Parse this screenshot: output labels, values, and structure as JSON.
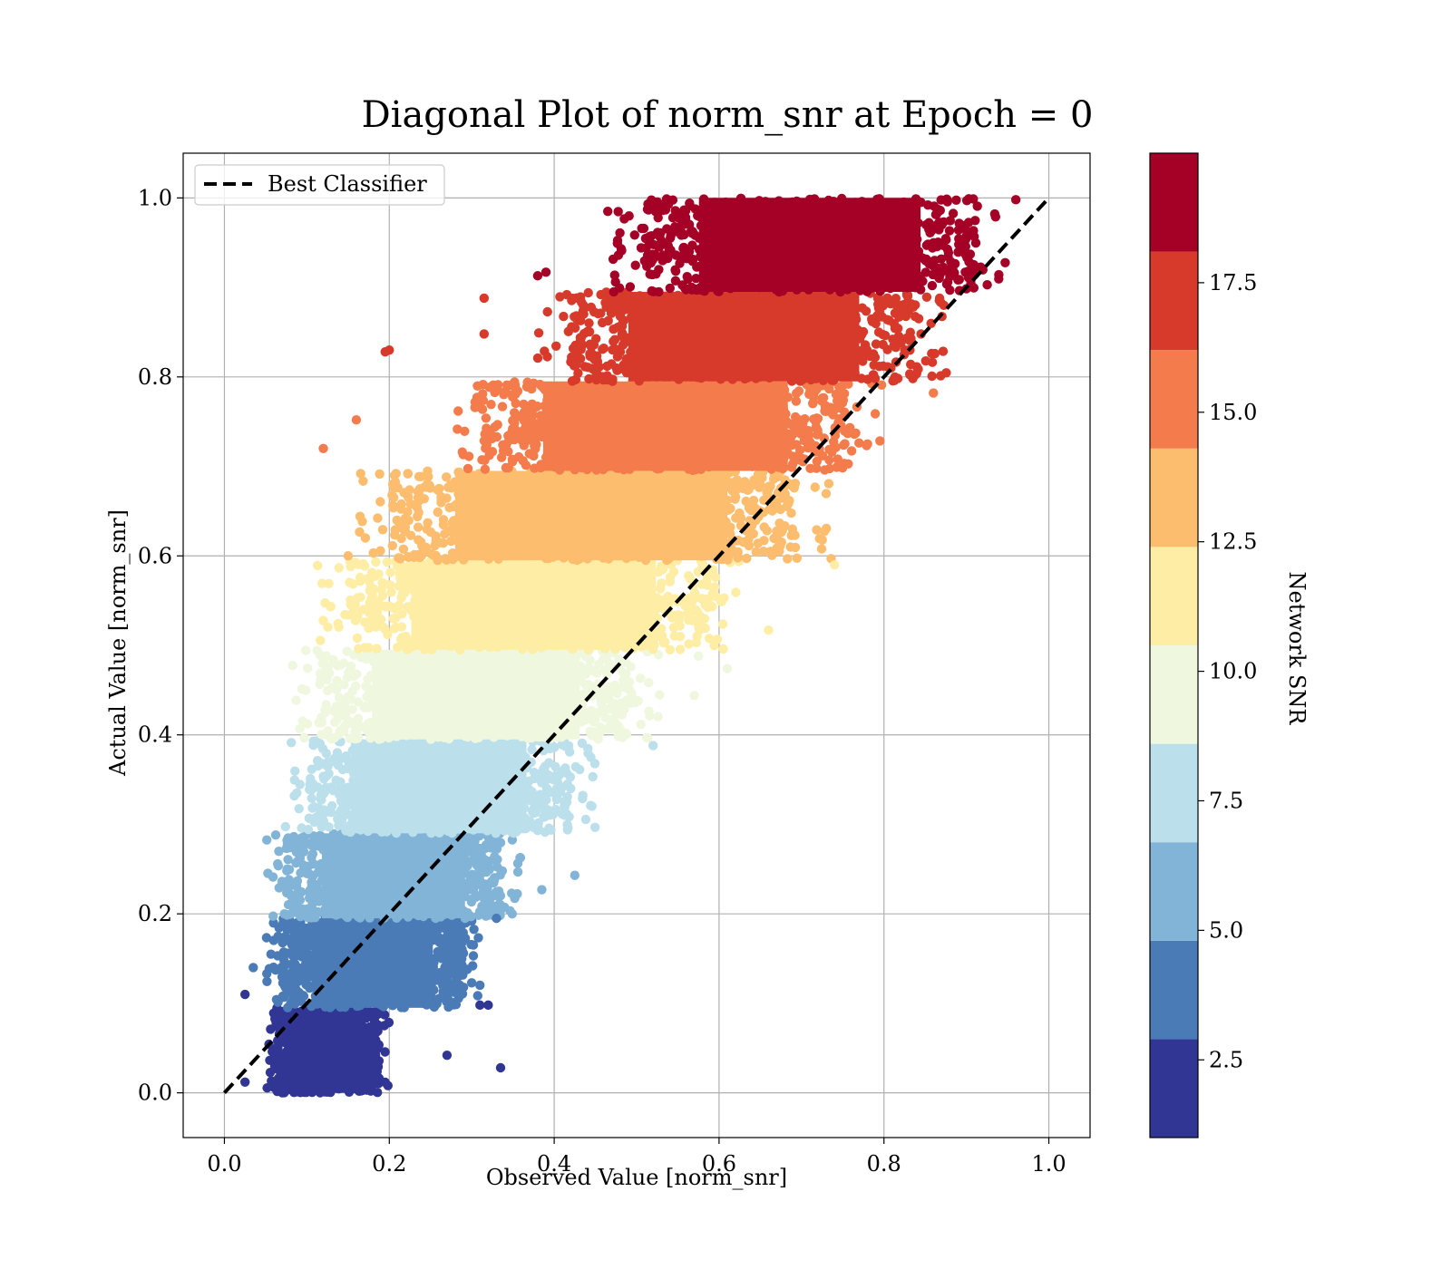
{
  "chart_data": {
    "type": "scatter",
    "title": "Diagonal Plot of norm_snr at Epoch = 0",
    "xlabel": "Observed Value [norm_snr]",
    "ylabel": "Actual Value [norm_snr]",
    "xlim": [
      -0.05,
      1.05
    ],
    "ylim": [
      -0.05,
      1.05
    ],
    "xticks": [
      "0.0",
      "0.2",
      "0.4",
      "0.6",
      "0.8",
      "1.0"
    ],
    "yticks": [
      "0.0",
      "0.2",
      "0.4",
      "0.6",
      "0.8",
      "1.0"
    ],
    "xtick_values": [
      0,
      0.2,
      0.4,
      0.6,
      0.8,
      1.0
    ],
    "ytick_values": [
      0,
      0.2,
      0.4,
      0.6,
      0.8,
      1.0
    ],
    "grid": true,
    "legend": {
      "placement": "top-left",
      "entries": [
        "Best Classifier"
      ]
    },
    "reference_line": {
      "label": "Best Classifier",
      "from": [
        0,
        0
      ],
      "to": [
        1,
        1
      ],
      "style": "dashed",
      "color": "#000000"
    },
    "colorbar": {
      "label": "Network SNR",
      "range": [
        1.0,
        20.0
      ],
      "ticks": [
        "2.5",
        "5.0",
        "7.5",
        "10.0",
        "12.5",
        "15.0",
        "17.5"
      ],
      "tick_values": [
        2.5,
        5.0,
        7.5,
        10.0,
        12.5,
        15.0,
        17.5
      ],
      "bands": [
        {
          "from": 1.0,
          "to": 2.9,
          "color": "#313695"
        },
        {
          "from": 2.9,
          "to": 4.8,
          "color": "#4a7bb7"
        },
        {
          "from": 4.8,
          "to": 6.7,
          "color": "#81b4d7"
        },
        {
          "from": 6.7,
          "to": 8.6,
          "color": "#bce0eb"
        },
        {
          "from": 8.6,
          "to": 10.5,
          "color": "#eff8df"
        },
        {
          "from": 10.5,
          "to": 12.4,
          "color": "#feeda4"
        },
        {
          "from": 12.4,
          "to": 14.3,
          "color": "#fcbd6f"
        },
        {
          "from": 14.3,
          "to": 16.2,
          "color": "#f47b4b"
        },
        {
          "from": 16.2,
          "to": 18.1,
          "color": "#d73a2b"
        },
        {
          "from": 18.1,
          "to": 20.0,
          "color": "#a50026"
        }
      ]
    },
    "series": [
      {
        "color": "#313695",
        "y_range": [
          0.0,
          0.095
        ],
        "x_range": [
          0.05,
          0.2
        ]
      },
      {
        "color": "#4a7bb7",
        "y_range": [
          0.095,
          0.195
        ],
        "x_range": [
          0.05,
          0.31
        ]
      },
      {
        "color": "#81b4d7",
        "y_range": [
          0.195,
          0.29
        ],
        "x_range": [
          0.05,
          0.36
        ]
      },
      {
        "color": "#bce0eb",
        "y_range": [
          0.29,
          0.395
        ],
        "x_range": [
          0.07,
          0.45
        ]
      },
      {
        "color": "#eff8df",
        "y_range": [
          0.395,
          0.495
        ],
        "x_range": [
          0.08,
          0.53
        ]
      },
      {
        "color": "#feeda4",
        "y_range": [
          0.495,
          0.595
        ],
        "x_range": [
          0.11,
          0.64
        ]
      },
      {
        "color": "#fcbd6f",
        "y_range": [
          0.595,
          0.695
        ],
        "x_range": [
          0.15,
          0.74
        ]
      },
      {
        "color": "#f47b4b",
        "y_range": [
          0.695,
          0.795
        ],
        "x_range": [
          0.27,
          0.8
        ]
      },
      {
        "color": "#d73a2b",
        "y_range": [
          0.795,
          0.895
        ],
        "x_range": [
          0.38,
          0.88
        ]
      },
      {
        "color": "#a50026",
        "y_range": [
          0.895,
          1.0
        ],
        "x_range": [
          0.47,
          0.95
        ]
      }
    ],
    "outliers": [
      {
        "x": 0.025,
        "y": 0.11,
        "color": "#313695"
      },
      {
        "x": 0.025,
        "y": 0.012,
        "color": "#313695"
      },
      {
        "x": 0.035,
        "y": 0.14,
        "color": "#4a7bb7"
      },
      {
        "x": 0.335,
        "y": 0.028,
        "color": "#313695"
      },
      {
        "x": 0.27,
        "y": 0.042,
        "color": "#313695"
      },
      {
        "x": 0.31,
        "y": 0.098,
        "color": "#313695"
      },
      {
        "x": 0.32,
        "y": 0.098,
        "color": "#313695"
      },
      {
        "x": 0.29,
        "y": 0.118,
        "color": "#4a7bb7"
      },
      {
        "x": 0.33,
        "y": 0.195,
        "color": "#4a7bb7"
      },
      {
        "x": 0.425,
        "y": 0.243,
        "color": "#81b4d7"
      },
      {
        "x": 0.385,
        "y": 0.227,
        "color": "#81b4d7"
      },
      {
        "x": 0.52,
        "y": 0.388,
        "color": "#bce0eb"
      },
      {
        "x": 0.57,
        "y": 0.444,
        "color": "#eff8df"
      },
      {
        "x": 0.61,
        "y": 0.474,
        "color": "#eff8df"
      },
      {
        "x": 0.575,
        "y": 0.488,
        "color": "#eff8df"
      },
      {
        "x": 0.66,
        "y": 0.517,
        "color": "#feeda4"
      },
      {
        "x": 0.74,
        "y": 0.59,
        "color": "#feeda4"
      },
      {
        "x": 0.12,
        "y": 0.72,
        "color": "#f47b4b"
      },
      {
        "x": 0.16,
        "y": 0.752,
        "color": "#f47b4b"
      },
      {
        "x": 0.195,
        "y": 0.828,
        "color": "#d73a2b"
      },
      {
        "x": 0.2,
        "y": 0.83,
        "color": "#d73a2b"
      },
      {
        "x": 0.315,
        "y": 0.888,
        "color": "#d73a2b"
      },
      {
        "x": 0.315,
        "y": 0.848,
        "color": "#d73a2b"
      },
      {
        "x": 0.38,
        "y": 0.913,
        "color": "#a50026"
      },
      {
        "x": 0.39,
        "y": 0.917,
        "color": "#a50026"
      },
      {
        "x": 0.465,
        "y": 0.985,
        "color": "#a50026"
      },
      {
        "x": 0.86,
        "y": 0.782,
        "color": "#f47b4b"
      },
      {
        "x": 0.845,
        "y": 0.848,
        "color": "#d73a2b"
      },
      {
        "x": 0.96,
        "y": 0.998,
        "color": "#a50026"
      }
    ]
  }
}
